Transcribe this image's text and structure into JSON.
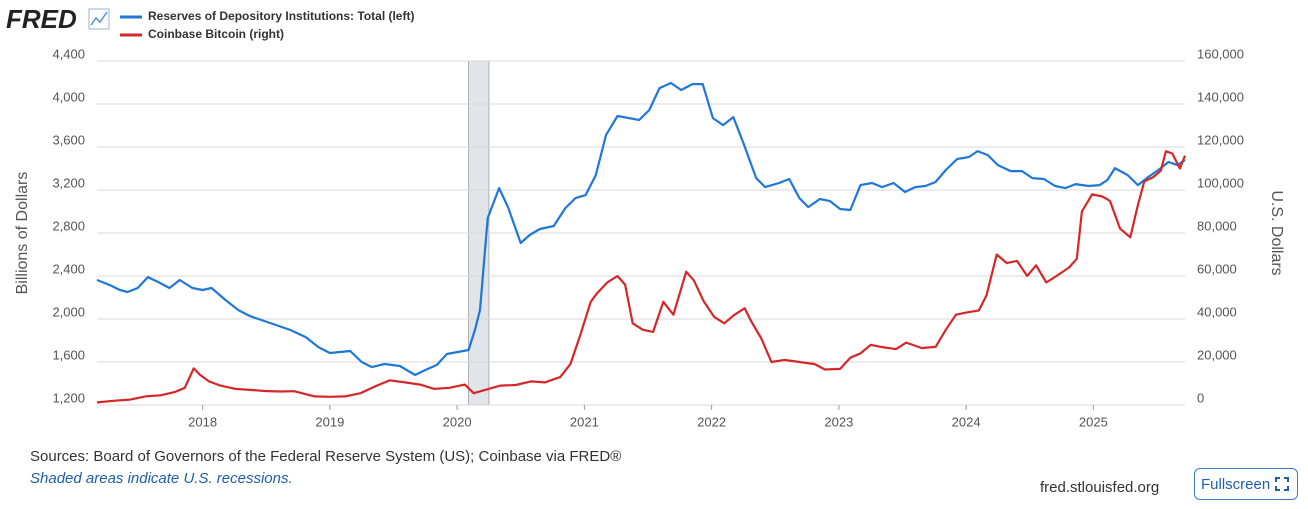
{
  "chart_data": {
    "type": "line",
    "logo": "FRED",
    "ylabel": "Billions of Dollars",
    "y2label": "U.S. Dollars",
    "source": "Sources: Board of Governors of the Federal Reserve System (US); Coinbase via FRED®",
    "note": "Shaded areas indicate U.S. recessions.",
    "site": "fred.stlouisfed.org",
    "button": "Fullscreen",
    "xlim": [
      2017.17,
      2025.72
    ],
    "xticks": [
      2018,
      2019,
      2020,
      2021,
      2022,
      2023,
      2024,
      2025
    ],
    "ylim": [
      1200,
      4400
    ],
    "yticks": [
      {
        "value": 1200,
        "label": "1,200"
      },
      {
        "value": 1600,
        "label": "1,600"
      },
      {
        "value": 2000,
        "label": "2,000"
      },
      {
        "value": 2400,
        "label": "2,400"
      },
      {
        "value": 2800,
        "label": "2,800"
      },
      {
        "value": 3200,
        "label": "3,200"
      },
      {
        "value": 3600,
        "label": "3,600"
      },
      {
        "value": 4000,
        "label": "4,000"
      },
      {
        "value": 4400,
        "label": "4,400"
      }
    ],
    "y2lim": [
      0,
      160000
    ],
    "y2ticks": [
      0,
      {
        "value": 20000,
        "label": "20,000"
      },
      {
        "value": 40000,
        "label": "40,000"
      },
      {
        "value": 60000,
        "label": "60,000"
      },
      {
        "value": 80000,
        "label": "80,000"
      },
      {
        "value": 100000,
        "label": "100,000"
      },
      {
        "value": 120000,
        "label": "120,000"
      },
      {
        "value": 140000,
        "label": "140,000"
      },
      {
        "value": 160000,
        "label": "160,000"
      }
    ],
    "grid": true,
    "recessions": [
      [
        2020.09,
        2020.25
      ]
    ],
    "series": [
      {
        "name": "Reserves of Depository Institutions: Total (left)",
        "color": "#1f77d8",
        "axis": "y",
        "x": [
          2017.17,
          2017.27,
          2017.35,
          2017.41,
          2017.49,
          2017.57,
          2017.65,
          2017.74,
          2017.82,
          2017.92,
          2018.0,
          2018.07,
          2018.18,
          2018.28,
          2018.37,
          2018.53,
          2018.69,
          2018.81,
          2018.91,
          2019.0,
          2019.16,
          2019.25,
          2019.33,
          2019.43,
          2019.55,
          2019.67,
          2019.75,
          2019.84,
          2019.92,
          2020.09,
          2020.14,
          2020.18,
          2020.24,
          2020.33,
          2020.4,
          2020.5,
          2020.57,
          2020.65,
          2020.76,
          2020.85,
          2020.93,
          2021.01,
          2021.09,
          2021.17,
          2021.26,
          2021.43,
          2021.51,
          2021.59,
          2021.68,
          2021.76,
          2021.85,
          2021.93,
          2022.01,
          2022.09,
          2022.17,
          2022.25,
          2022.35,
          2022.42,
          2022.53,
          2022.61,
          2022.69,
          2022.76,
          2022.85,
          2022.93,
          2023.01,
          2023.09,
          2023.17,
          2023.26,
          2023.34,
          2023.43,
          2023.52,
          2023.6,
          2023.68,
          2023.76,
          2023.84,
          2023.93,
          2024.02,
          2024.09,
          2024.17,
          2024.25,
          2024.35,
          2024.44,
          2024.52,
          2024.61,
          2024.7,
          2024.78,
          2024.86,
          2024.96,
          2025.05,
          2025.11,
          2025.17,
          2025.27,
          2025.35,
          2025.43,
          2025.51,
          2025.59,
          2025.66,
          2025.72
        ],
        "values": [
          2363,
          2316,
          2270,
          2251,
          2288,
          2390,
          2344,
          2288,
          2363,
          2288,
          2270,
          2288,
          2177,
          2084,
          2028,
          1963,
          1898,
          1832,
          1739,
          1684,
          1702,
          1600,
          1553,
          1581,
          1563,
          1479,
          1526,
          1572,
          1674,
          1712,
          1898,
          2084,
          2939,
          3218,
          3041,
          2707,
          2781,
          2837,
          2865,
          3032,
          3125,
          3153,
          3339,
          3711,
          3888,
          3851,
          3944,
          4148,
          4195,
          4130,
          4185,
          4185,
          3869,
          3804,
          3878,
          3637,
          3311,
          3227,
          3265,
          3302,
          3125,
          3041,
          3116,
          3097,
          3023,
          3014,
          3246,
          3265,
          3227,
          3265,
          3181,
          3227,
          3237,
          3274,
          3386,
          3488,
          3506,
          3562,
          3525,
          3432,
          3376,
          3376,
          3311,
          3302,
          3237,
          3218,
          3255,
          3237,
          3246,
          3293,
          3404,
          3339,
          3246,
          3320,
          3386,
          3460,
          3432,
          3479
        ]
      },
      {
        "name": "Coinbase Bitcoin (right)",
        "color": "#d62728",
        "axis": "y2",
        "x": [
          2017.17,
          2017.31,
          2017.43,
          2017.55,
          2017.67,
          2017.78,
          2017.86,
          2017.93,
          2017.98,
          2018.05,
          2018.14,
          2018.26,
          2018.37,
          2018.49,
          2018.61,
          2018.72,
          2018.88,
          2019.0,
          2019.12,
          2019.24,
          2019.35,
          2019.47,
          2019.59,
          2019.71,
          2019.82,
          2019.94,
          2020.06,
          2020.13,
          2020.22,
          2020.34,
          2020.46,
          2020.58,
          2020.69,
          2020.81,
          2020.89,
          2020.97,
          2021.05,
          2021.1,
          2021.18,
          2021.26,
          2021.32,
          2021.38,
          2021.46,
          2021.54,
          2021.62,
          2021.7,
          2021.8,
          2021.86,
          2021.94,
          2022.02,
          2022.1,
          2022.18,
          2022.26,
          2022.31,
          2022.39,
          2022.47,
          2022.57,
          2022.69,
          2022.81,
          2022.89,
          2023.01,
          2023.09,
          2023.17,
          2023.25,
          2023.33,
          2023.45,
          2023.53,
          2023.65,
          2023.76,
          2023.84,
          2023.92,
          2024.0,
          2024.1,
          2024.16,
          2024.24,
          2024.32,
          2024.4,
          2024.48,
          2024.55,
          2024.63,
          2024.71,
          2024.81,
          2024.87,
          2024.91,
          2024.99,
          2025.07,
          2025.13,
          2025.21,
          2025.29,
          2025.35,
          2025.4,
          2025.47,
          2025.53,
          2025.57,
          2025.62,
          2025.68,
          2025.72
        ],
        "values": [
          1200,
          2000,
          2500,
          4000,
          4500,
          6000,
          8000,
          17000,
          14000,
          11000,
          9000,
          7500,
          7000,
          6500,
          6300,
          6400,
          4000,
          3800,
          4000,
          5500,
          8500,
          11500,
          10500,
          9500,
          7500,
          8000,
          9500,
          5500,
          7000,
          9000,
          9300,
          11000,
          10500,
          13000,
          19000,
          33000,
          48000,
          52000,
          57000,
          60000,
          56000,
          38000,
          35000,
          34000,
          48000,
          42000,
          62000,
          58000,
          48000,
          41000,
          38000,
          42000,
          45000,
          39000,
          31000,
          20000,
          21000,
          20000,
          19000,
          16500,
          16800,
          22000,
          24000,
          28000,
          27000,
          26000,
          29000,
          26500,
          27000,
          35000,
          42000,
          43000,
          44000,
          51000,
          70000,
          66000,
          67000,
          60000,
          65000,
          57000,
          60000,
          64000,
          68000,
          90000,
          98000,
          97000,
          95000,
          82000,
          78000,
          93000,
          104000,
          106000,
          109000,
          118000,
          117000,
          110000,
          116000
        ]
      }
    ]
  }
}
